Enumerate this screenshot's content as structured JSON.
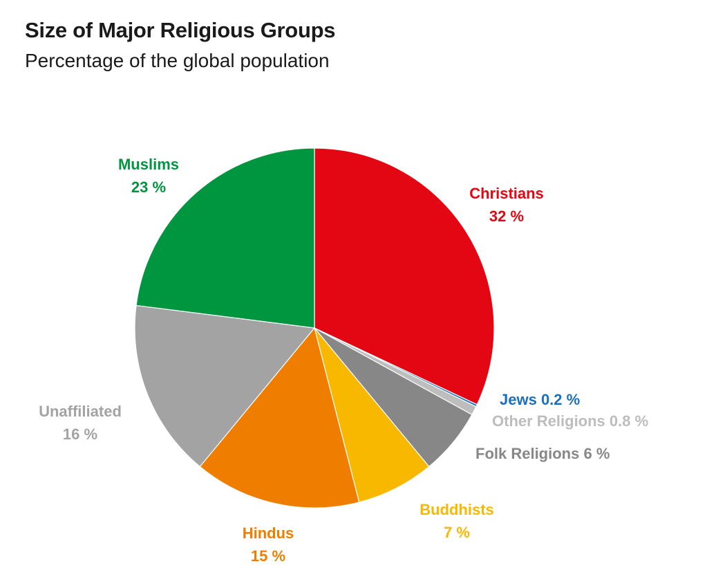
{
  "title": "Size of Major Religious Groups",
  "subtitle": "Percentage of the global population",
  "chart_data": {
    "type": "pie",
    "title": "Size of Major Religious Groups",
    "subtitle": "Percentage of the global population",
    "unit": "%",
    "slices": [
      {
        "name": "Christians",
        "value": 32,
        "label": "32 %",
        "color": "#e30613"
      },
      {
        "name": "Jews",
        "value": 0.2,
        "label": "0.2 %",
        "color": "#1a6fbf"
      },
      {
        "name": "Other Religions",
        "value": 0.8,
        "label": "0.8 %",
        "color": "#bdbdbd"
      },
      {
        "name": "Folk Religions",
        "value": 6,
        "label": "6 %",
        "color": "#878787"
      },
      {
        "name": "Buddhists",
        "value": 7,
        "label": "7 %",
        "color": "#f9b800"
      },
      {
        "name": "Hindus",
        "value": 15,
        "label": "15 %",
        "color": "#ef7d00"
      },
      {
        "name": "Unaffiliated",
        "value": 16,
        "label": "16 %",
        "color": "#a3a3a3"
      },
      {
        "name": "Muslims",
        "value": 23,
        "label": "23 %",
        "color": "#009640"
      }
    ]
  }
}
